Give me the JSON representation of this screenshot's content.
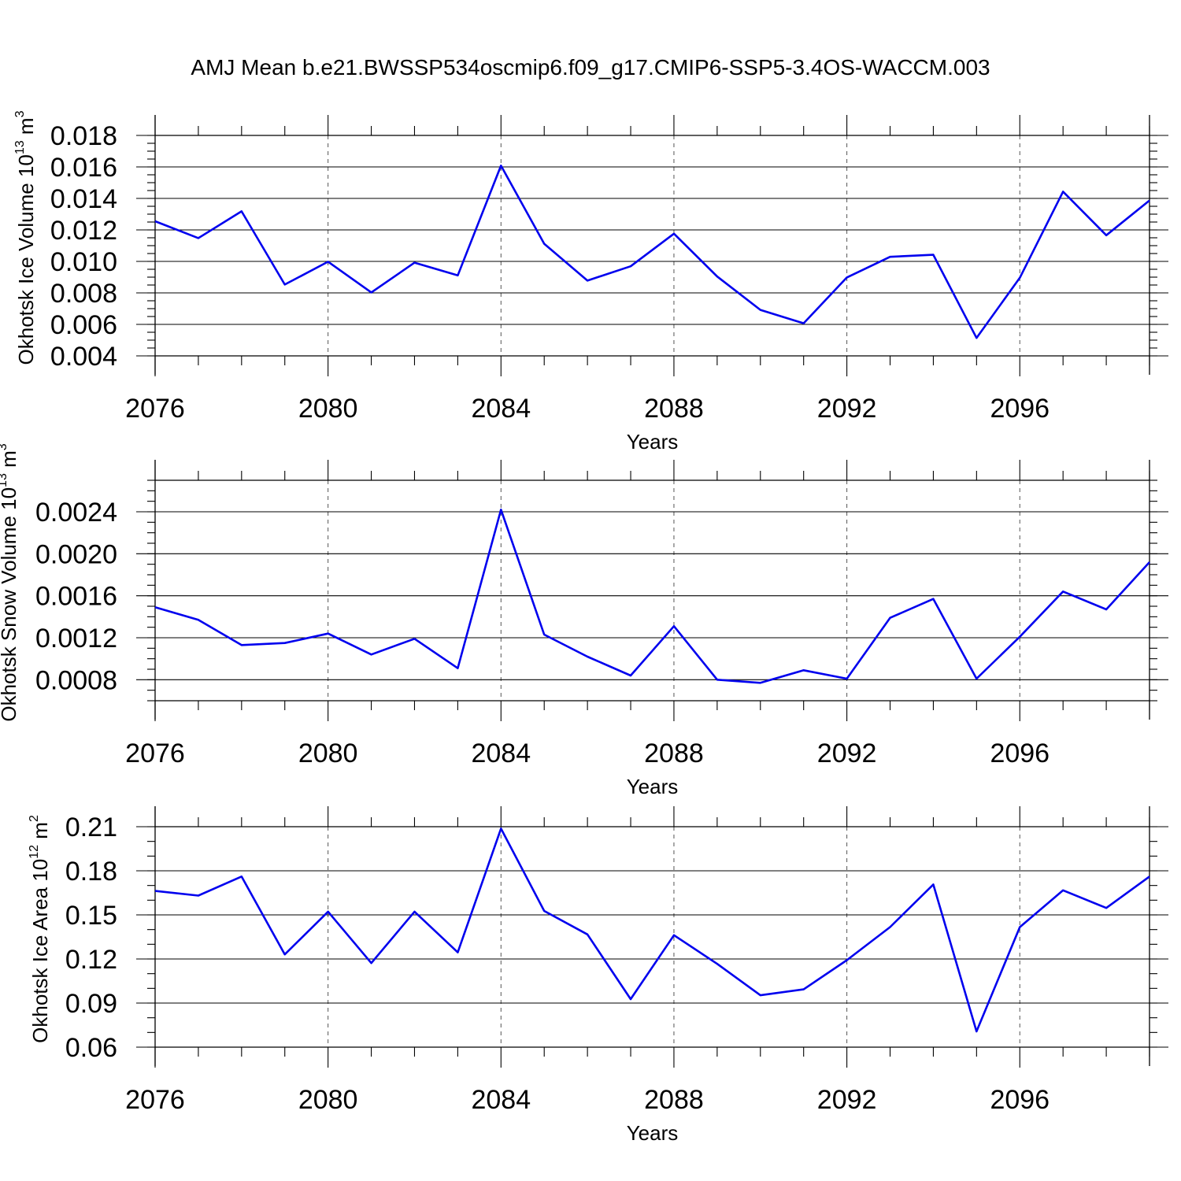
{
  "title": "AMJ Mean b.e21.BWSSP534oscmip6.f09_g17.CMIP6-SSP5-3.4OS-WACCM.003",
  "colors": {
    "line": "#0000ee",
    "frame": "#000000",
    "grid": "#555555"
  },
  "chart_data": [
    {
      "type": "line",
      "ylabel": {
        "text": "Okhotsk Ice Volume 10",
        "sup": "13",
        "unit": " m",
        "unit_sup": "3"
      },
      "xlabel": "Years",
      "xlim": [
        2076,
        2099
      ],
      "ylim": [
        0.004,
        0.018
      ],
      "x_ticks": [
        "2076",
        "2080",
        "2084",
        "2088",
        "2092",
        "2096"
      ],
      "y_ticks": [
        "0.004",
        "0.006",
        "0.008",
        "0.010",
        "0.012",
        "0.014",
        "0.016",
        "0.018"
      ],
      "y_minor_step": 0.0005,
      "x": [
        2076,
        2077,
        2078,
        2079,
        2080,
        2081,
        2082,
        2083,
        2084,
        2085,
        2086,
        2087,
        2088,
        2089,
        2090,
        2091,
        2092,
        2093,
        2094,
        2095,
        2096,
        2097,
        2098,
        2099
      ],
      "values": [
        0.01255,
        0.01148,
        0.01318,
        0.00853,
        0.00998,
        0.00803,
        0.00992,
        0.00911,
        0.01608,
        0.01112,
        0.00878,
        0.00969,
        0.01176,
        0.00904,
        0.00692,
        0.00607,
        0.00898,
        0.01029,
        0.01042,
        0.00514,
        0.00896,
        0.01443,
        0.01166,
        0.01387
      ],
      "grid": "vertical-dashed"
    },
    {
      "type": "line",
      "ylabel": {
        "text": "Okhotsk Snow Volume 10",
        "sup": "13",
        "unit": " m",
        "unit_sup": "3"
      },
      "xlabel": "Years",
      "xlim": [
        2076,
        2099
      ],
      "ylim": [
        0.0006,
        0.0027
      ],
      "x_ticks": [
        "2076",
        "2080",
        "2084",
        "2088",
        "2092",
        "2096"
      ],
      "y_ticks": [
        "0.0008",
        "0.0012",
        "0.0016",
        "0.0020",
        "0.0024"
      ],
      "y_minor_step": 0.0001,
      "x": [
        2076,
        2077,
        2078,
        2079,
        2080,
        2081,
        2082,
        2083,
        2084,
        2085,
        2086,
        2087,
        2088,
        2089,
        2090,
        2091,
        2092,
        2093,
        2094,
        2095,
        2096,
        2097,
        2098,
        2099
      ],
      "values": [
        0.00149,
        0.00137,
        0.00113,
        0.00115,
        0.00124,
        0.00104,
        0.00119,
        0.00091,
        0.00242,
        0.00123,
        0.00102,
        0.00084,
        0.00131,
        0.0008,
        0.00077,
        0.00089,
        0.00081,
        0.00139,
        0.00157,
        0.00081,
        0.00121,
        0.00164,
        0.00147,
        0.00192
      ],
      "grid": "vertical-dashed"
    },
    {
      "type": "line",
      "ylabel": {
        "text": "Okhotsk Ice Area 10",
        "sup": "12",
        "unit": " m",
        "unit_sup": "2"
      },
      "xlabel": "Years",
      "xlim": [
        2076,
        2099
      ],
      "ylim": [
        0.06,
        0.21
      ],
      "x_ticks": [
        "2076",
        "2080",
        "2084",
        "2088",
        "2092",
        "2096"
      ],
      "y_ticks": [
        "0.06",
        "0.09",
        "0.12",
        "0.15",
        "0.18",
        "0.21"
      ],
      "y_minor_step": 0.01,
      "x": [
        2076,
        2077,
        2078,
        2079,
        2080,
        2081,
        2082,
        2083,
        2084,
        2085,
        2086,
        2087,
        2088,
        2089,
        2090,
        2091,
        2092,
        2093,
        2094,
        2095,
        2096,
        2097,
        2098,
        2099
      ],
      "values": [
        0.1663,
        0.1631,
        0.1761,
        0.1231,
        0.1522,
        0.1172,
        0.1522,
        0.1245,
        0.2087,
        0.1527,
        0.1367,
        0.0927,
        0.1362,
        0.1167,
        0.0953,
        0.0993,
        0.1192,
        0.1417,
        0.1707,
        0.0707,
        0.1417,
        0.1667,
        0.1547,
        0.1761
      ],
      "grid": "vertical-dashed"
    }
  ]
}
